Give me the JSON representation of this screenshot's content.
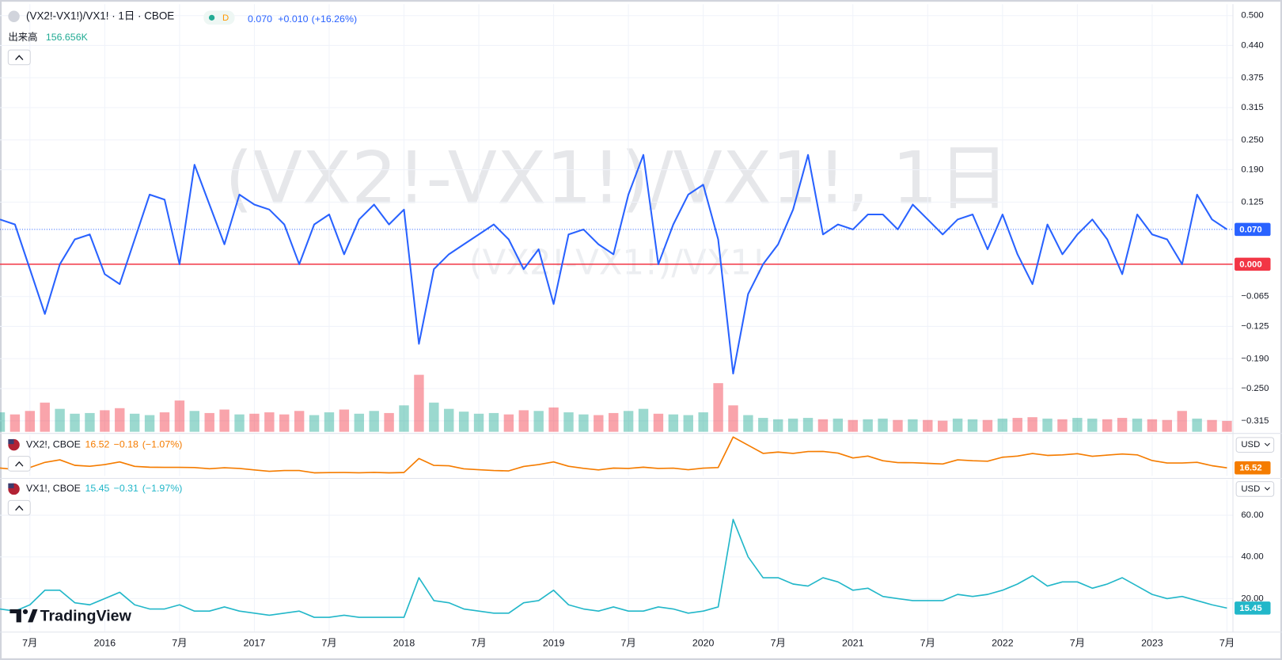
{
  "header": {
    "legend_title": "(VX2!-VX1!)/VX1! · 1日 · CBOE",
    "interval_badge": "D"
  },
  "watermark": {
    "title": "(VX2!-VX1!)/VX1!, 1日",
    "subtitle": "(VX2!-VX1!)/VX1!"
  },
  "branding": "TradingView",
  "chart_data": {
    "type": "line",
    "grid": true,
    "x": [
      2015.3,
      2015.4,
      2015.5,
      2015.6,
      2015.7,
      2015.8,
      2015.9,
      2016,
      2016.1,
      2016.2,
      2016.3,
      2016.4,
      2016.5,
      2016.6,
      2016.7,
      2016.8,
      2016.9,
      2017,
      2017.1,
      2017.2,
      2017.3,
      2017.4,
      2017.5,
      2017.6,
      2017.7,
      2017.8,
      2017.9,
      2018,
      2018.1,
      2018.2,
      2018.3,
      2018.4,
      2018.5,
      2018.6,
      2018.7,
      2018.8,
      2018.9,
      2019,
      2019.1,
      2019.2,
      2019.3,
      2019.4,
      2019.5,
      2019.6,
      2019.7,
      2019.8,
      2019.9,
      2020,
      2020.1,
      2020.2,
      2020.3,
      2020.4,
      2020.5,
      2020.6,
      2020.7,
      2020.8,
      2020.9,
      2021,
      2021.1,
      2021.2,
      2021.3,
      2021.4,
      2021.5,
      2021.6,
      2021.7,
      2021.8,
      2021.9,
      2022,
      2022.1,
      2022.2,
      2022.3,
      2022.4,
      2022.5,
      2022.6,
      2022.7,
      2022.8,
      2022.9,
      2023,
      2023.1,
      2023.2,
      2023.3,
      2023.4,
      2023.5
    ],
    "xlim": [
      2015.3,
      2023.54
    ],
    "xticks": [
      {
        "value": 2015.5,
        "label": "7月"
      },
      2016,
      {
        "value": 2016.5,
        "label": "7月"
      },
      2017,
      {
        "value": 2017.5,
        "label": "7月"
      },
      2018,
      {
        "value": 2018.5,
        "label": "7月"
      },
      2019,
      {
        "value": 2019.5,
        "label": "7月"
      },
      2020,
      {
        "value": 2020.5,
        "label": "7月"
      },
      2021,
      {
        "value": 2021.5,
        "label": "7月"
      },
      2022,
      {
        "value": 2022.5,
        "label": "7月"
      },
      2023,
      {
        "value": 2023.5,
        "label": "7月"
      }
    ],
    "panes": [
      {
        "ylim": [
          -0.337,
          0.523
        ],
        "yticks": [
          {
            "value": 0.5,
            "label": "0.500"
          },
          {
            "value": 0.44,
            "label": "0.440"
          },
          {
            "value": 0.375,
            "label": "0.375"
          },
          {
            "value": 0.315,
            "label": "0.315"
          },
          {
            "value": 0.25,
            "label": "0.250"
          },
          {
            "value": 0.19,
            "label": "0.190"
          },
          {
            "value": 0.125,
            "label": "0.125"
          },
          {
            "value": -0.065,
            "label": "−0.065"
          },
          {
            "value": -0.125,
            "label": "−0.125"
          },
          {
            "value": -0.19,
            "label": "−0.190"
          },
          {
            "value": -0.25,
            "label": "−0.250"
          },
          {
            "value": -0.315,
            "label": "−0.315"
          }
        ]
      },
      {
        "ylim": [
          9,
          47
        ],
        "currency": "USD"
      },
      {
        "ylim": [
          4.3,
          76.9
        ],
        "yticks": [
          {
            "value": 60,
            "label": "60.00"
          },
          {
            "value": 40,
            "label": "40.00"
          },
          {
            "value": 20,
            "label": "20.00"
          }
        ],
        "currency": "USD"
      }
    ],
    "hline": {
      "value": 0,
      "label": "0.000",
      "color": "#f23645"
    },
    "series": [
      {
        "pane": 0,
        "color": "#2962ff",
        "last_value": {
          "value": 0.07,
          "label": "0.070"
        },
        "change": {
          "value": 0.01,
          "label": "+0.010"
        },
        "change_pct": {
          "value": 16.26,
          "label": "(+16.26%)"
        },
        "values": [
          0.09,
          0.08,
          -0.01,
          -0.1,
          0.0,
          0.05,
          0.06,
          -0.02,
          -0.04,
          0.05,
          0.14,
          0.13,
          0.0,
          0.2,
          0.12,
          0.04,
          0.14,
          0.12,
          0.11,
          0.08,
          0.0,
          0.08,
          0.1,
          0.02,
          0.09,
          0.12,
          0.08,
          0.11,
          -0.16,
          -0.01,
          0.02,
          0.04,
          0.06,
          0.08,
          0.05,
          -0.01,
          0.03,
          -0.08,
          0.06,
          0.07,
          0.04,
          0.02,
          0.14,
          0.22,
          0.0,
          0.08,
          0.14,
          0.16,
          0.05,
          -0.22,
          -0.06,
          0.0,
          0.04,
          0.11,
          0.22,
          0.06,
          0.08,
          0.07,
          0.1,
          0.1,
          0.07,
          0.12,
          0.09,
          0.06,
          0.09,
          0.1,
          0.03,
          0.1,
          0.02,
          -0.04,
          0.08,
          0.02,
          0.06,
          0.09,
          0.05,
          -0.02,
          0.1,
          0.06,
          0.05,
          0.0,
          0.14,
          0.09,
          0.07
        ]
      },
      {
        "name": "VX2!, CBOE",
        "pane": 1,
        "color": "#f57c00",
        "change": {
          "value": -0.18,
          "label": "−0.18"
        },
        "change_pct": {
          "value": -1.07,
          "label": "(−1.07%)"
        },
        "values": [
          16.4,
          15.1,
          16.8,
          21.6,
          24,
          18.9,
          18.0,
          19.6,
          22.1,
          17.9,
          17.1,
          17.0,
          17,
          16.8,
          15.7,
          16.6,
          16.0,
          14.6,
          13.3,
          14.0,
          14,
          11.9,
          12.1,
          12.2,
          12.0,
          12.3,
          11.9,
          12.2,
          25.2,
          18.8,
          18.4,
          15.6,
          14.8,
          14.0,
          13.7,
          17.8,
          19.6,
          22.1,
          18.0,
          16.1,
          14.6,
          16.3,
          16.0,
          17.1,
          16,
          16.2,
          14.8,
          16.2,
          16.8,
          45.2,
          37.6,
          30,
          31.2,
          30.0,
          31.7,
          31.8,
          30.2,
          25.7,
          27.5,
          23.1,
          21.4,
          21.3,
          20.7,
          20.1,
          24.0,
          23.1,
          22.7,
          26.4,
          27.5,
          29.8,
          28.1,
          28.6,
          29.7,
          27.3,
          28.4,
          29.4,
          28.6,
          23.3,
          21,
          21,
          21.7,
          18.5,
          16.52
        ]
      },
      {
        "name": "VX1!, CBOE",
        "pane": 2,
        "color": "#22b7c9",
        "change": {
          "value": -0.31,
          "label": "−0.31"
        },
        "change_pct": {
          "value": -1.97,
          "label": "(−1.97%)"
        },
        "values": [
          15,
          14,
          17,
          24,
          24,
          18,
          17,
          20,
          23,
          17,
          15,
          15,
          17,
          14,
          14,
          16,
          14,
          13,
          12,
          13,
          14,
          11,
          11,
          12,
          11,
          11,
          11,
          11,
          30,
          19,
          18,
          15,
          14,
          13,
          13,
          18,
          19,
          24,
          17,
          15,
          14,
          16,
          14,
          14,
          16,
          15,
          13,
          14,
          16,
          58,
          40,
          30,
          30,
          27,
          26,
          30,
          28,
          24,
          25,
          21,
          20,
          19,
          19,
          19,
          22,
          21,
          22,
          24,
          27,
          31,
          26,
          28,
          28,
          25,
          27,
          30,
          26,
          22,
          20,
          21,
          19,
          17,
          15.45
        ]
      }
    ],
    "volume": {
      "name": "出来高",
      "last_value": {
        "value": 156656,
        "label": "156.656K"
      },
      "vlim": [
        0,
        1000000
      ],
      "colors": {
        "up": "#22ab94",
        "down": "#f23645"
      },
      "values": [
        280000,
        250000,
        300000,
        420000,
        330000,
        260000,
        270000,
        310000,
        340000,
        260000,
        240000,
        280000,
        450000,
        300000,
        270000,
        320000,
        250000,
        260000,
        280000,
        250000,
        300000,
        240000,
        280000,
        320000,
        260000,
        300000,
        270000,
        380000,
        820000,
        420000,
        330000,
        290000,
        260000,
        270000,
        250000,
        310000,
        300000,
        350000,
        280000,
        250000,
        240000,
        270000,
        300000,
        330000,
        260000,
        250000,
        240000,
        280000,
        700000,
        380000,
        240000,
        200000,
        180000,
        190000,
        200000,
        180000,
        190000,
        170000,
        180000,
        190000,
        170000,
        180000,
        170000,
        160000,
        190000,
        180000,
        170000,
        190000,
        200000,
        210000,
        190000,
        180000,
        200000,
        190000,
        180000,
        200000,
        190000,
        180000,
        170000,
        300000,
        190000,
        170000,
        156656
      ]
    }
  }
}
